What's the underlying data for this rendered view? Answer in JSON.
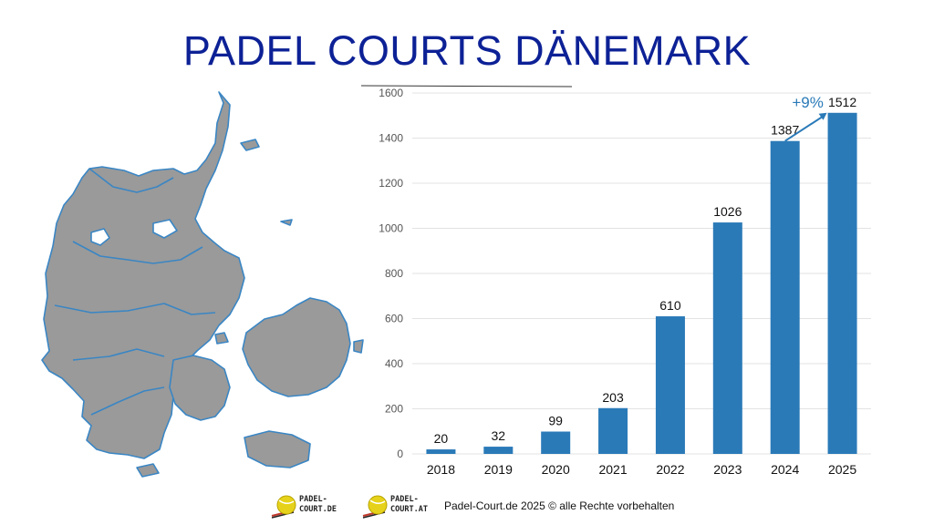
{
  "title": "PADEL COURTS DÄNEMARK",
  "map": {
    "icon": "denmark-map",
    "fill": "#9a9a9a",
    "stroke": "#3a86c4"
  },
  "colors": {
    "title": "#0d2196",
    "bar": "#2a7ab8",
    "growth": "#2a7ab8"
  },
  "chart_data": {
    "type": "bar",
    "categories": [
      "2018",
      "2019",
      "2020",
      "2021",
      "2022",
      "2023",
      "2024",
      "2025"
    ],
    "values": [
      20,
      32,
      99,
      203,
      610,
      1026,
      1387,
      1512
    ],
    "data_labels": [
      "20",
      "32",
      "99",
      "203",
      "610",
      "1026",
      "1387",
      "1512"
    ],
    "y_ticks": [
      "0",
      "200",
      "400",
      "600",
      "800",
      "1000",
      "1200",
      "1400",
      "1600"
    ],
    "ylim": [
      0,
      1600
    ],
    "grid": true,
    "title": "",
    "xlabel": "",
    "ylabel": "",
    "annotation": {
      "text": "+9%",
      "from_category": "2024",
      "to_category": "2025"
    }
  },
  "footer": {
    "logos": [
      {
        "icon": "padel-ball-logo",
        "text": "PADEL-\nCOURT.DE"
      },
      {
        "icon": "padel-ball-logo",
        "text": "PADEL-\nCOURT.AT"
      }
    ],
    "copyright": "Padel-Court.de 2025 © alle Rechte vorbehalten"
  }
}
